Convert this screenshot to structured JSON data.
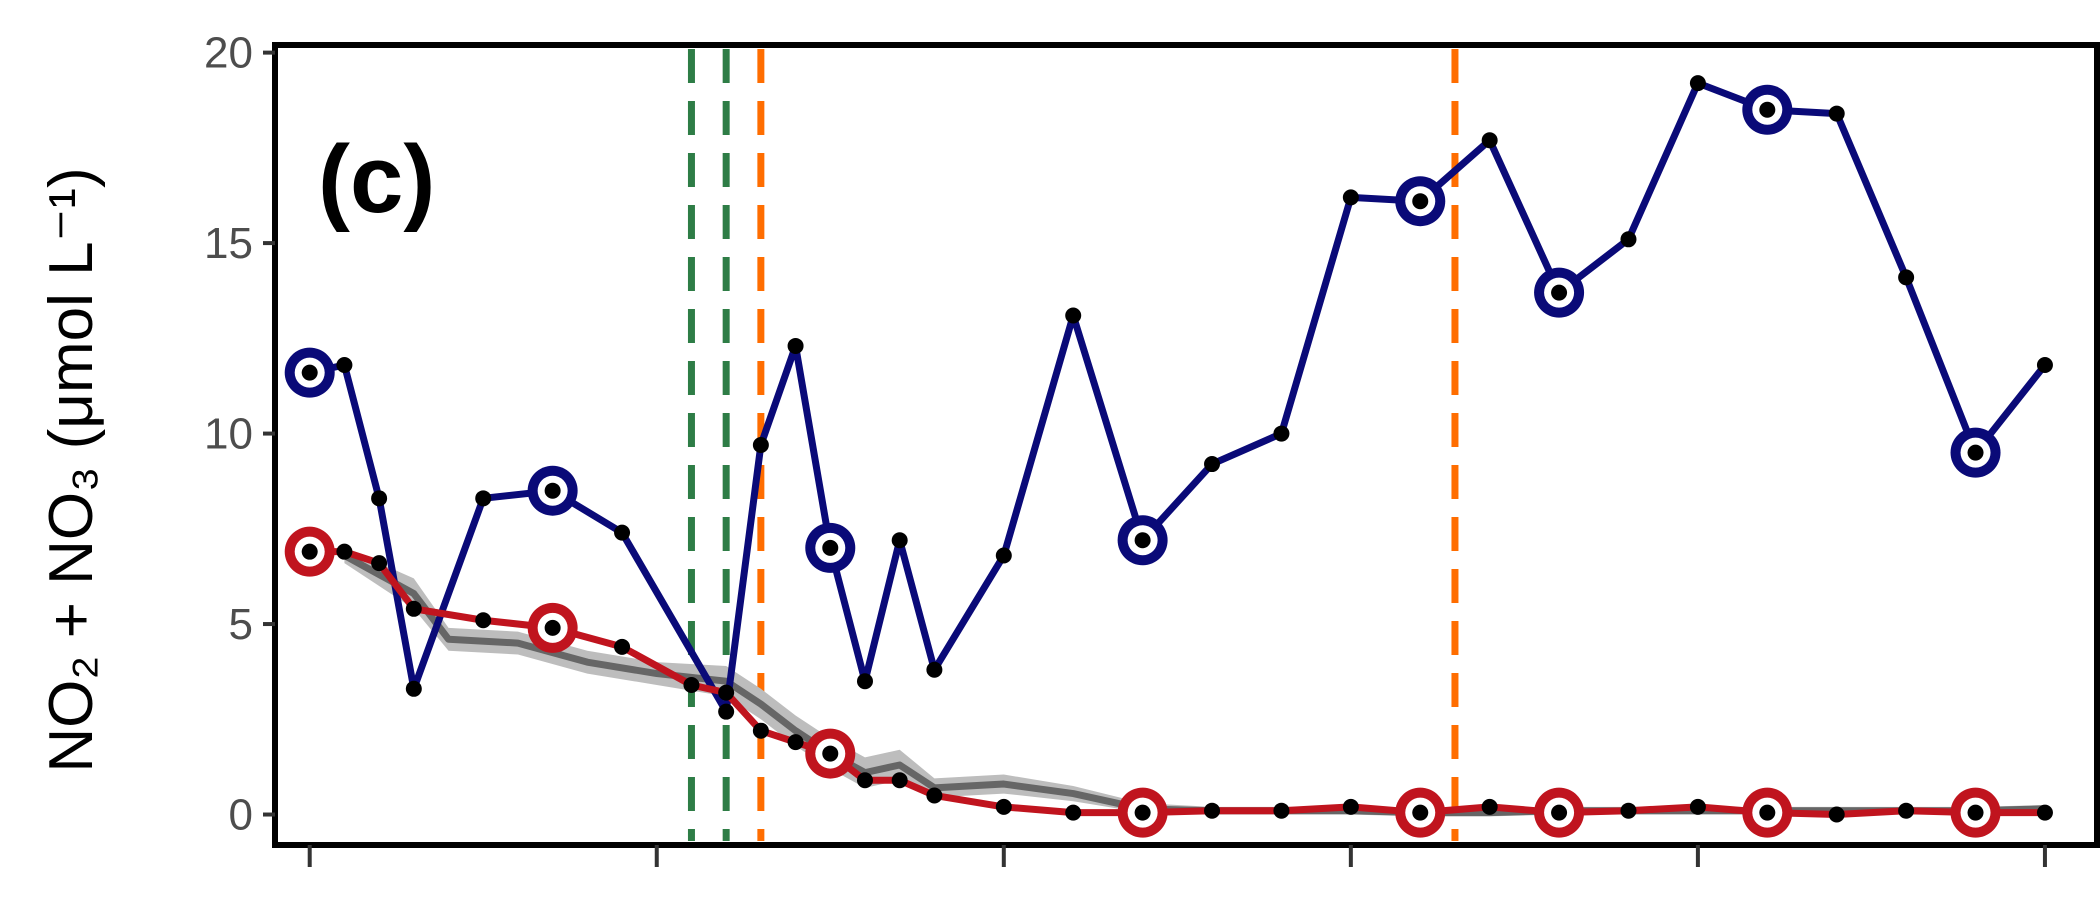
{
  "chart_data": {
    "type": "line",
    "panel_label": "(c)",
    "ylabel": "NO₂ + NO₃ (μmol L⁻¹)",
    "ylim": [
      -0.8,
      20.2
    ],
    "xlim": [
      -0.2,
      10.3
    ],
    "yticks": [
      0,
      5,
      10,
      15,
      20
    ],
    "xticks": [
      0,
      2,
      4,
      6,
      8,
      10
    ],
    "vlines": [
      {
        "x": 2.2,
        "color": "#2e7d46"
      },
      {
        "x": 2.4,
        "color": "#2e7d46"
      },
      {
        "x": 2.6,
        "color": "#ff6d00"
      },
      {
        "x": 6.6,
        "color": "#ff6d00"
      }
    ],
    "band": {
      "color": "#bdbdbd",
      "line_color": "#666666",
      "x": [
        0.2,
        0.6,
        0.8,
        1.2,
        1.6,
        2.0,
        2.4,
        2.6,
        2.8,
        3.0,
        3.2,
        3.4,
        3.6,
        4.0,
        4.4,
        4.8,
        5.2,
        5.6,
        6.0,
        6.4,
        6.8,
        7.2,
        7.6,
        8.0,
        8.4,
        8.8,
        9.2,
        9.6,
        10.0
      ],
      "mid": [
        6.8,
        5.8,
        4.6,
        4.5,
        4.0,
        3.7,
        3.5,
        2.9,
        2.2,
        1.6,
        1.1,
        1.3,
        0.7,
        0.8,
        0.55,
        0.15,
        0.1,
        0.1,
        0.1,
        0.05,
        0.05,
        0.1,
        0.1,
        0.1,
        0.1,
        0.1,
        0.1,
        0.1,
        0.15
      ],
      "lower": [
        6.6,
        5.4,
        4.3,
        4.2,
        3.7,
        3.4,
        3.1,
        2.5,
        1.8,
        1.2,
        0.7,
        0.9,
        0.45,
        0.55,
        0.35,
        0.05,
        0.0,
        0.0,
        0.0,
        -0.05,
        -0.05,
        0.0,
        0.0,
        0.0,
        0.0,
        0.0,
        0.0,
        0.0,
        0.05
      ],
      "upper": [
        7.0,
        6.2,
        4.9,
        4.8,
        4.3,
        4.0,
        3.9,
        3.3,
        2.6,
        2.0,
        1.5,
        1.7,
        0.95,
        1.05,
        0.75,
        0.3,
        0.2,
        0.2,
        0.2,
        0.15,
        0.15,
        0.2,
        0.2,
        0.2,
        0.2,
        0.2,
        0.2,
        0.2,
        0.25
      ]
    },
    "series": [
      {
        "color": "#0a0a78",
        "x": [
          0.0,
          0.2,
          0.4,
          0.6,
          1.0,
          1.4,
          1.8,
          2.4,
          2.6,
          2.8,
          3.0,
          3.2,
          3.4,
          3.6,
          4.0,
          4.4,
          4.8,
          5.2,
          5.6,
          6.0,
          6.4,
          6.8,
          7.2,
          7.6,
          8.0,
          8.4,
          8.8,
          9.2,
          9.6,
          10.0
        ],
        "values": [
          11.6,
          11.8,
          8.3,
          3.3,
          8.3,
          8.5,
          7.4,
          2.7,
          9.7,
          12.3,
          7.0,
          3.5,
          7.2,
          3.8,
          6.8,
          13.1,
          7.2,
          9.2,
          10.0,
          16.2,
          16.1,
          17.7,
          13.7,
          15.1,
          19.2,
          18.5,
          18.4,
          14.1,
          9.5,
          11.8
        ],
        "circled": [
          0,
          5,
          10,
          16,
          20,
          22,
          25,
          28
        ]
      },
      {
        "color": "#c0141e",
        "x": [
          0.0,
          0.2,
          0.4,
          0.6,
          1.0,
          1.4,
          1.8,
          2.2,
          2.4,
          2.6,
          2.8,
          3.0,
          3.2,
          3.4,
          3.6,
          4.0,
          4.4,
          4.8,
          5.2,
          5.6,
          6.0,
          6.4,
          6.8,
          7.2,
          7.6,
          8.0,
          8.4,
          8.8,
          9.2,
          9.6,
          10.0
        ],
        "values": [
          6.9,
          6.9,
          6.6,
          5.4,
          5.1,
          4.9,
          4.4,
          3.4,
          3.2,
          2.2,
          1.9,
          1.6,
          0.9,
          0.9,
          0.5,
          0.2,
          0.05,
          0.05,
          0.1,
          0.1,
          0.2,
          0.05,
          0.2,
          0.05,
          0.1,
          0.2,
          0.05,
          0.0,
          0.1,
          0.05,
          0.05
        ],
        "circled": [
          0,
          5,
          11,
          17,
          21,
          23,
          26,
          29
        ]
      }
    ]
  }
}
